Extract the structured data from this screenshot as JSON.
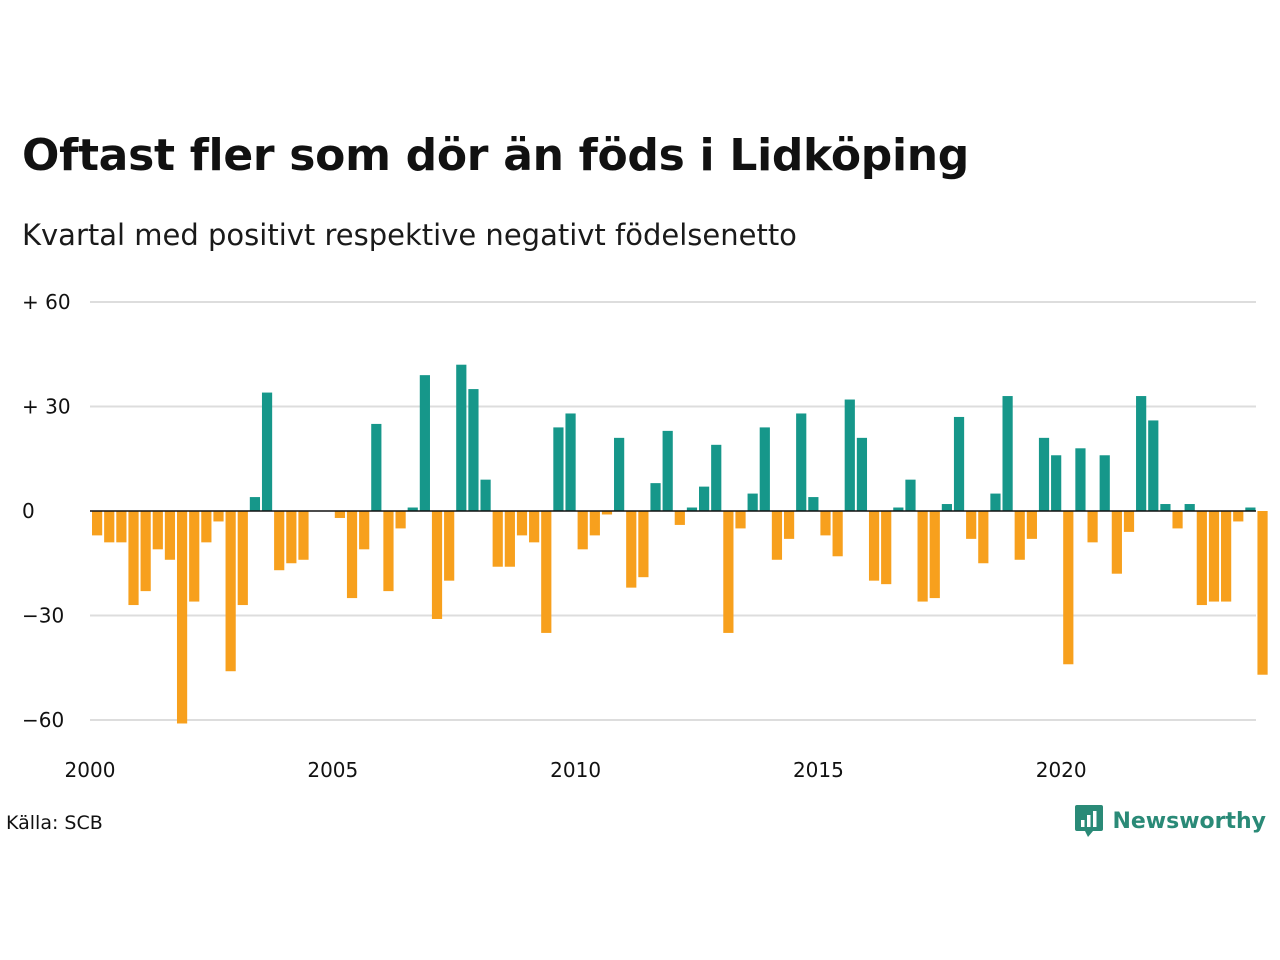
{
  "title": "Oftast fler som dör än föds i Lidköping",
  "subtitle": "Kvartal med positivt respektive negativt födelsenetto",
  "source": "Källa: SCB",
  "logo_text": "Newsworthy",
  "colors": {
    "positive": "#16978a",
    "negative": "#f7a01d",
    "grid": "#dddddd",
    "zero_line": "#111111",
    "logo": "#2a8a77"
  },
  "chart_data": {
    "type": "bar",
    "title": "Oftast fler som dör än föds i Lidköping",
    "subtitle": "Kvartal med positivt respektive negativt födelsenetto",
    "x_start": 2000,
    "periods_per_year": 4,
    "ylim": [
      -60,
      60
    ],
    "grid": true,
    "yticks": [
      {
        "value": 60,
        "label": "+ 60"
      },
      {
        "value": 30,
        "label": "+ 30"
      },
      {
        "value": 0,
        "label": "0"
      },
      {
        "value": -30,
        "label": "−30"
      },
      {
        "value": -60,
        "label": "−60"
      }
    ],
    "xticks": [
      {
        "value": 2000,
        "label": "2000"
      },
      {
        "value": 2005,
        "label": "2005"
      },
      {
        "value": 2010,
        "label": "2010"
      },
      {
        "value": 2015,
        "label": "2015"
      },
      {
        "value": 2020,
        "label": "2020"
      }
    ],
    "values": [
      -7,
      -9,
      -9,
      -27,
      -23,
      -11,
      -14,
      -61,
      -26,
      -9,
      -3,
      -46,
      -27,
      4,
      34,
      -17,
      -15,
      -14,
      0,
      0,
      -2,
      -25,
      -11,
      25,
      -23,
      -5,
      1,
      39,
      -31,
      -20,
      42,
      35,
      9,
      -16,
      -16,
      -7,
      -9,
      -35,
      24,
      28,
      -11,
      -7,
      -1,
      21,
      -22,
      -19,
      8,
      23,
      -4,
      1,
      7,
      19,
      -35,
      -5,
      5,
      24,
      -14,
      -8,
      28,
      4,
      -7,
      -13,
      32,
      21,
      -20,
      -21,
      1,
      9,
      -26,
      -25,
      2,
      27,
      -8,
      -15,
      5,
      33,
      -14,
      -8,
      21,
      16,
      -44,
      18,
      -9,
      16,
      -18,
      -6,
      33,
      26,
      2,
      -5,
      2,
      -27,
      -26,
      -26,
      -3,
      1,
      -47
    ]
  }
}
